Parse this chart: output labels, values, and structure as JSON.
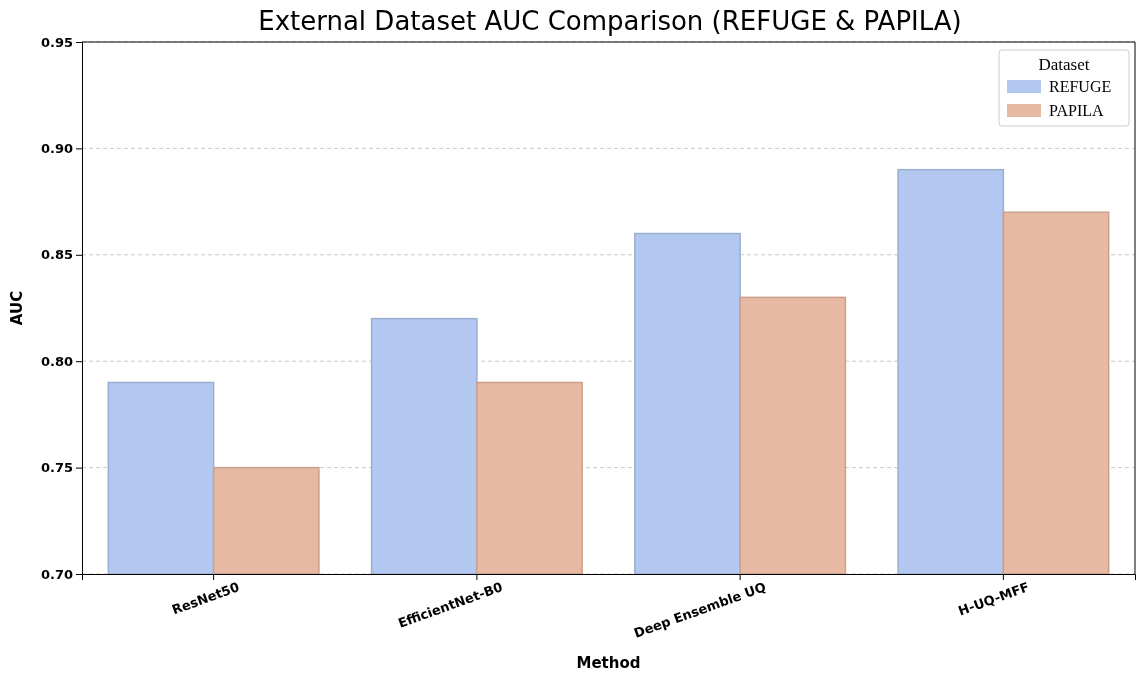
{
  "chart_data": {
    "type": "bar",
    "title": "External Dataset AUC Comparison (REFUGE & PAPILA)",
    "xlabel": "Method",
    "ylabel": "AUC",
    "legend_title": "Dataset",
    "categories": [
      "ResNet50",
      "EfficientNet-B0",
      "Deep Ensemble UQ",
      "H-UQ-MFF"
    ],
    "series": [
      {
        "name": "REFUGE",
        "color": "#b3c8f0",
        "values": [
          0.79,
          0.82,
          0.86,
          0.89
        ]
      },
      {
        "name": "PAPILA",
        "color": "#e8b9a2",
        "values": [
          0.75,
          0.79,
          0.83,
          0.87
        ]
      }
    ],
    "ylim": [
      0.7,
      0.95
    ],
    "yticks": [
      {
        "value": 0.7,
        "label": "0.70"
      },
      0.75,
      {
        "value": 0.8,
        "label": "0.80"
      },
      0.85,
      {
        "value": 0.9,
        "label": "0.90"
      },
      0.95
    ],
    "grid": "y",
    "legend": "top right"
  }
}
